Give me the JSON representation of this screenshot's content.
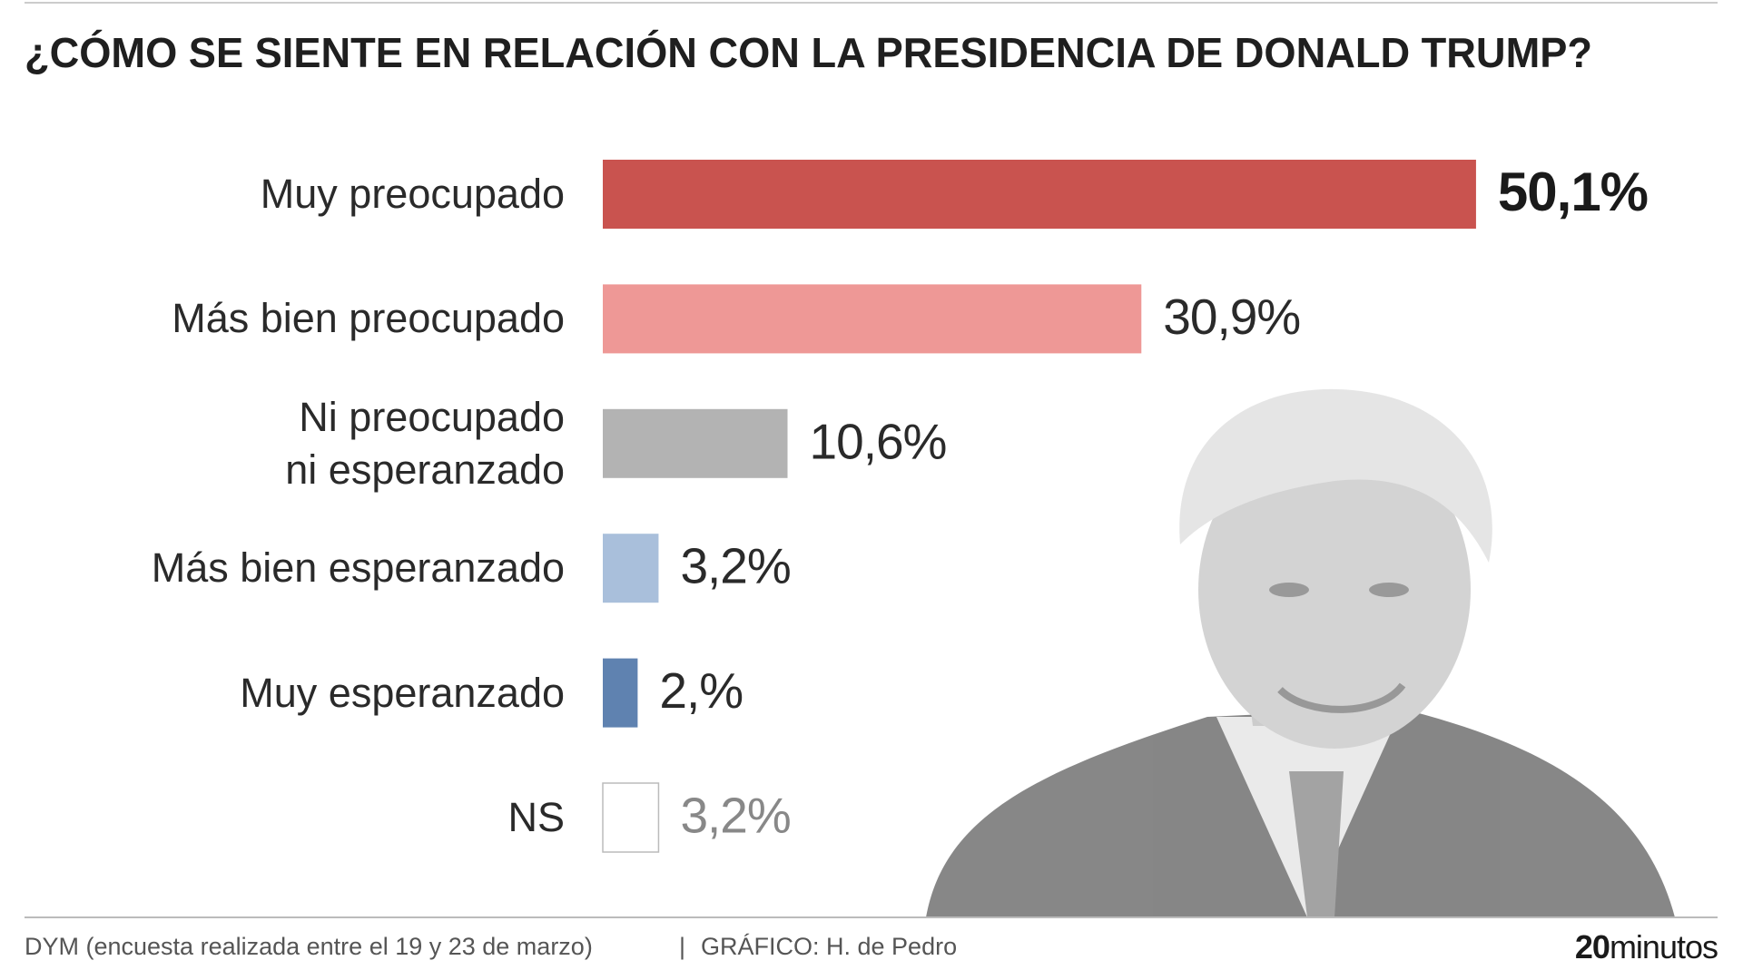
{
  "chart_data": {
    "type": "bar",
    "orientation": "horizontal",
    "title": "¿CÓMO SE SIENTE EN RELACIÓN CON LA PRESIDENCIA DE DONALD TRUMP?",
    "categories": [
      "Muy preocupado",
      "Más bien preocupado",
      "Ni preocupado\nni esperanzado",
      "Más bien esperanzado",
      "Muy esperanzado",
      "NS"
    ],
    "values": [
      50.1,
      30.9,
      10.6,
      3.2,
      2,
      3.2
    ],
    "value_labels": [
      "50,1%",
      "30,9%",
      "10,6%",
      "3,2%",
      "2,%",
      "3,2%"
    ],
    "colors": [
      "#c9534f",
      "#ee9896",
      "#b3b3b3",
      "#a9bfdb",
      "#5f82b0",
      "#ffffff"
    ]
  },
  "footer": {
    "source": "DYM (encuesta realizada entre el 19 y 23 de marzo)",
    "separator": "|",
    "credit": "GRÁFICO: H. de Pedro",
    "logo": {
      "bold": "20",
      "rest": "minutos"
    }
  }
}
